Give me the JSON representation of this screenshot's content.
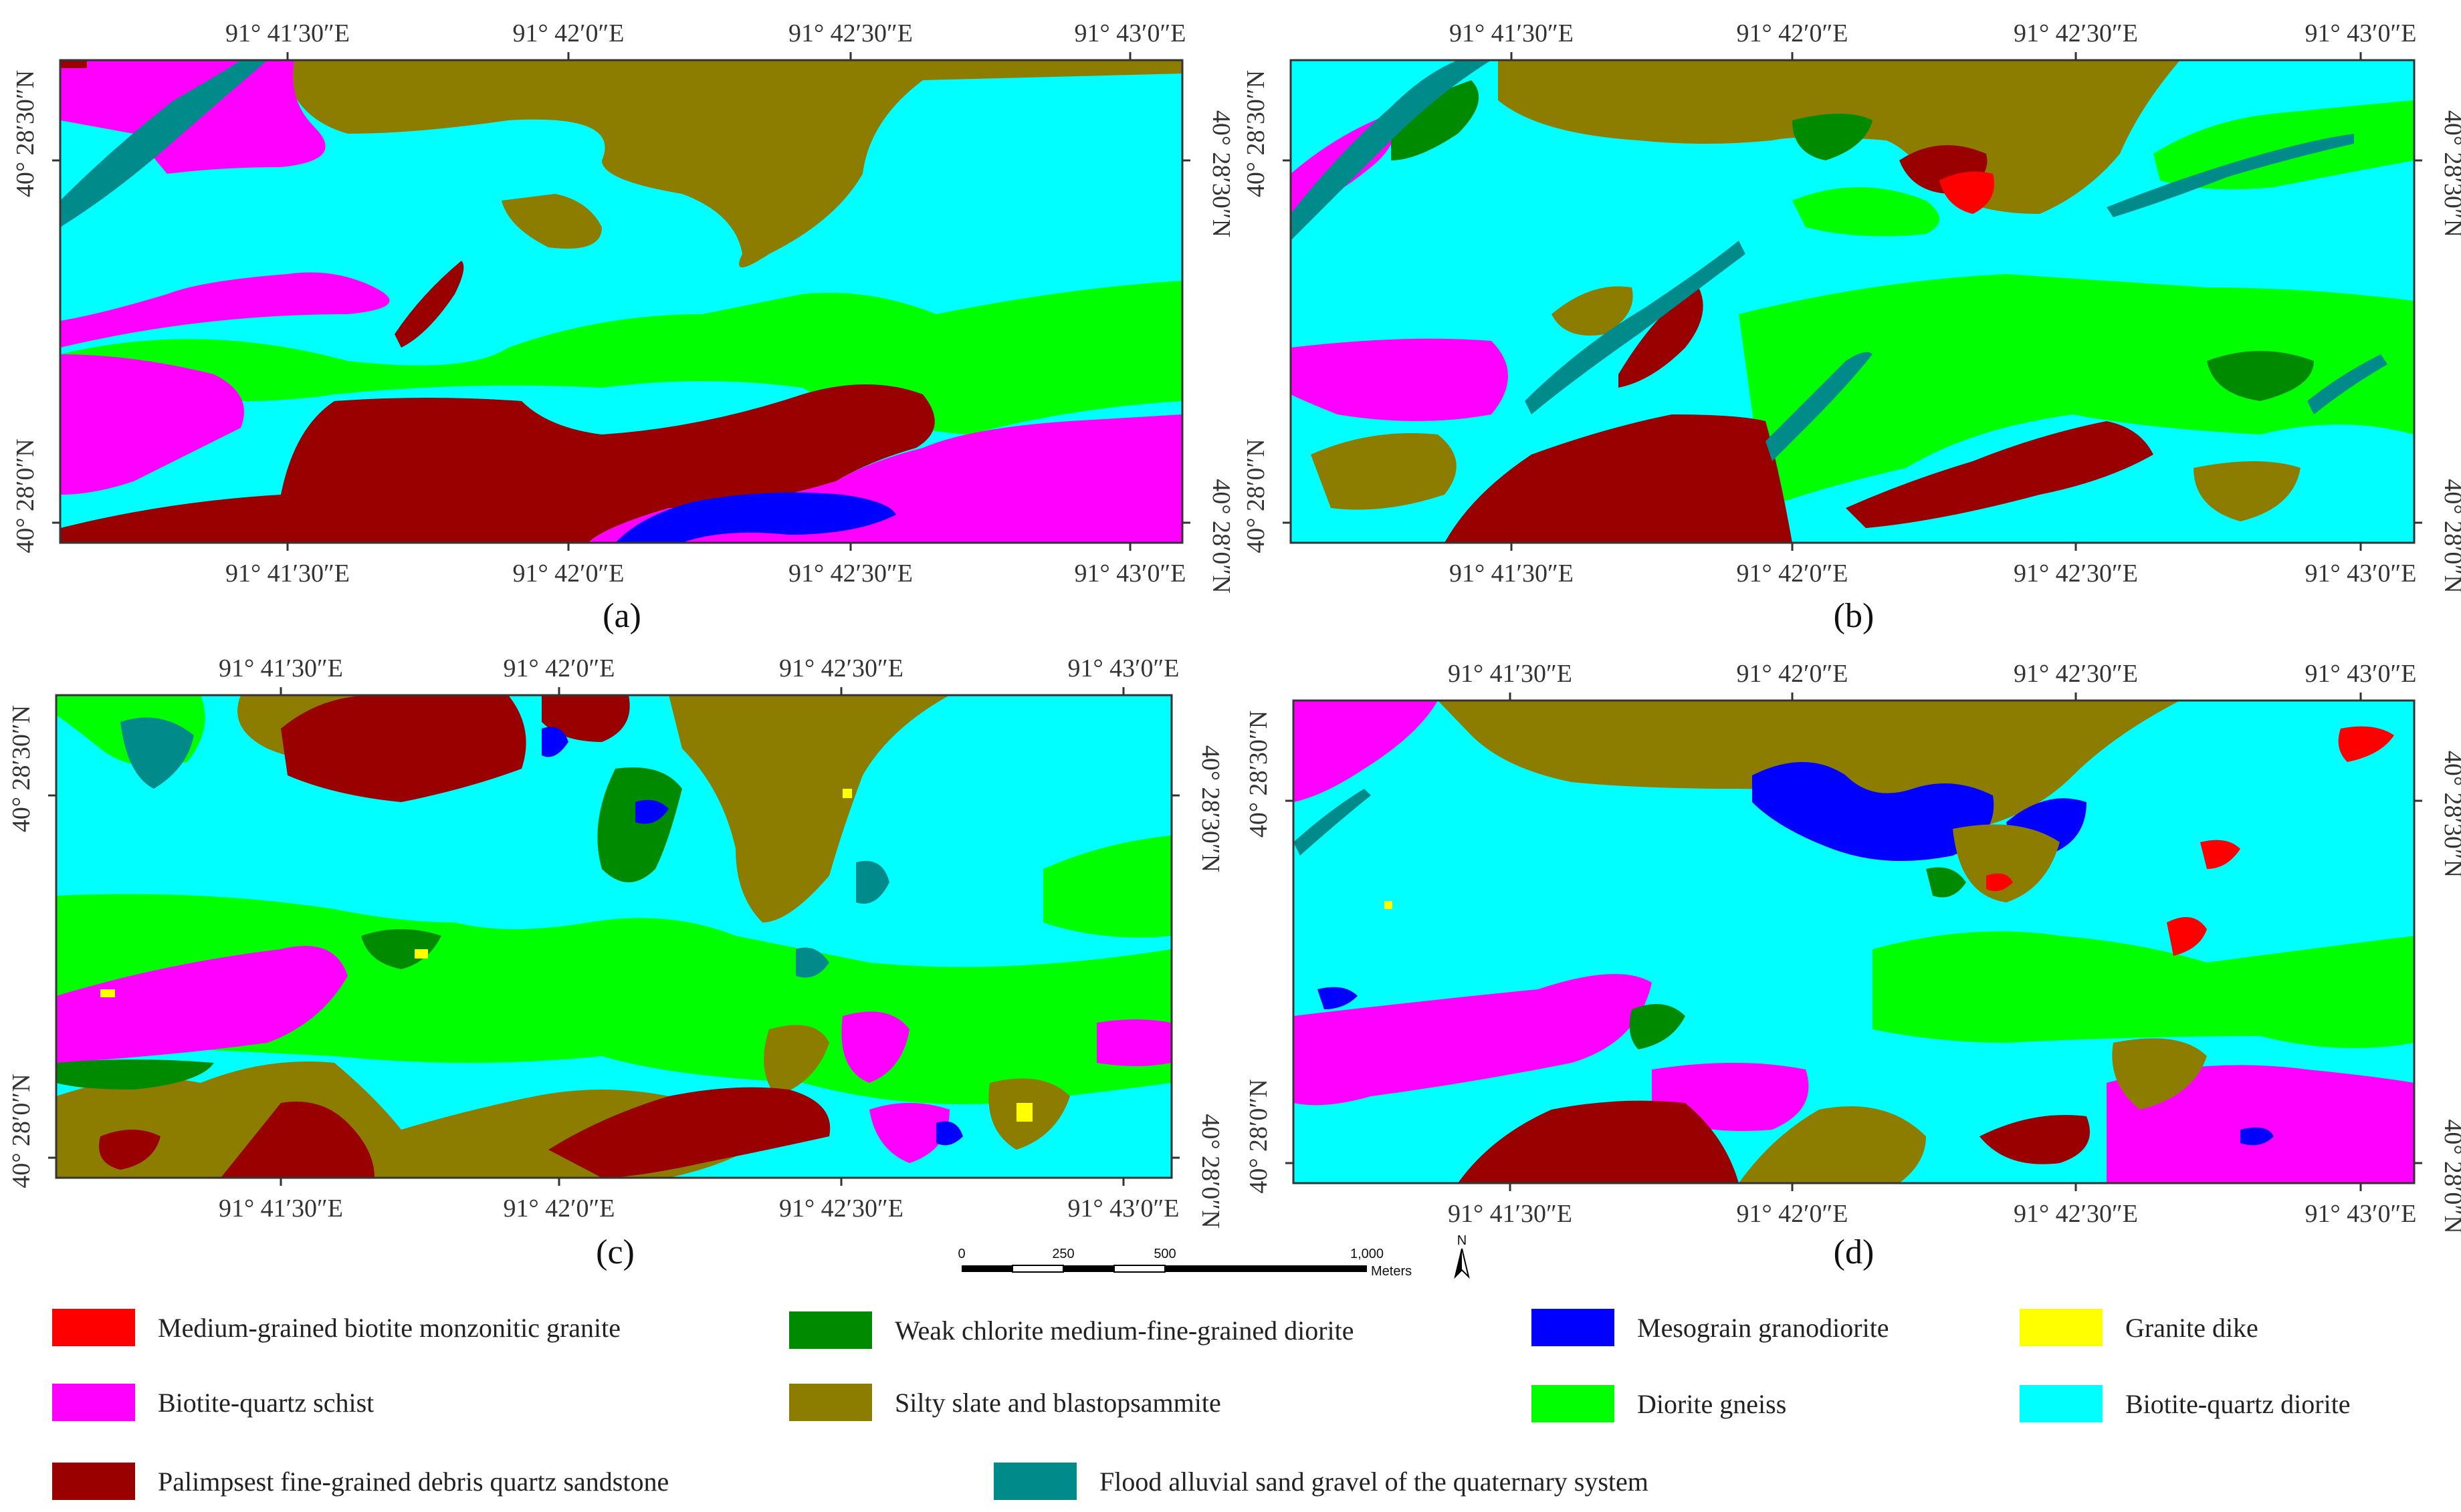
{
  "colors": {
    "red": "#ff0000",
    "magenta": "#ff00ff",
    "maroon": "#990000",
    "dark_green": "#008a00",
    "olive": "#8c7d00",
    "teal": "#008a8a",
    "blue": "#0000ff",
    "green": "#00ff00",
    "yellow": "#ffff00",
    "cyan": "#00ffff"
  },
  "panels": [
    {
      "label": "(a)"
    },
    {
      "label": "(b)"
    },
    {
      "label": "(c)"
    },
    {
      "label": "(d)"
    }
  ],
  "longitudes": [
    "91° 41′30″E",
    "91° 42′0″E",
    "91° 42′30″E",
    "91° 43′0″E"
  ],
  "latitudes": [
    "40° 28′30″N",
    "40° 28′0″N"
  ],
  "scale_bar": {
    "ticks": [
      "0",
      "250",
      "500",
      "1,000"
    ],
    "unit": "Meters",
    "north": "N"
  },
  "legend": [
    {
      "label": "Medium-grained biotite monzonitic granite",
      "color": "#ff0000"
    },
    {
      "label": "Weak chlorite medium-fine-grained diorite",
      "color": "#008a00"
    },
    {
      "label": "Mesograin granodiorite",
      "color": "#0000ff"
    },
    {
      "label": "Granite dike",
      "color": "#ffff00"
    },
    {
      "label": "Biotite-quartz schist",
      "color": "#ff00ff"
    },
    {
      "label": "Silty slate and blastopsammite",
      "color": "#8c7d00"
    },
    {
      "label": "Diorite gneiss",
      "color": "#00ff00"
    },
    {
      "label": "Biotite-quartz diorite",
      "color": "#00ffff"
    },
    {
      "label": "Palimpsest fine-grained debris quartz sandstone",
      "color": "#990000"
    },
    {
      "label": "Flood alluvial sand gravel of the quaternary system",
      "color": "#008a8a"
    }
  ]
}
